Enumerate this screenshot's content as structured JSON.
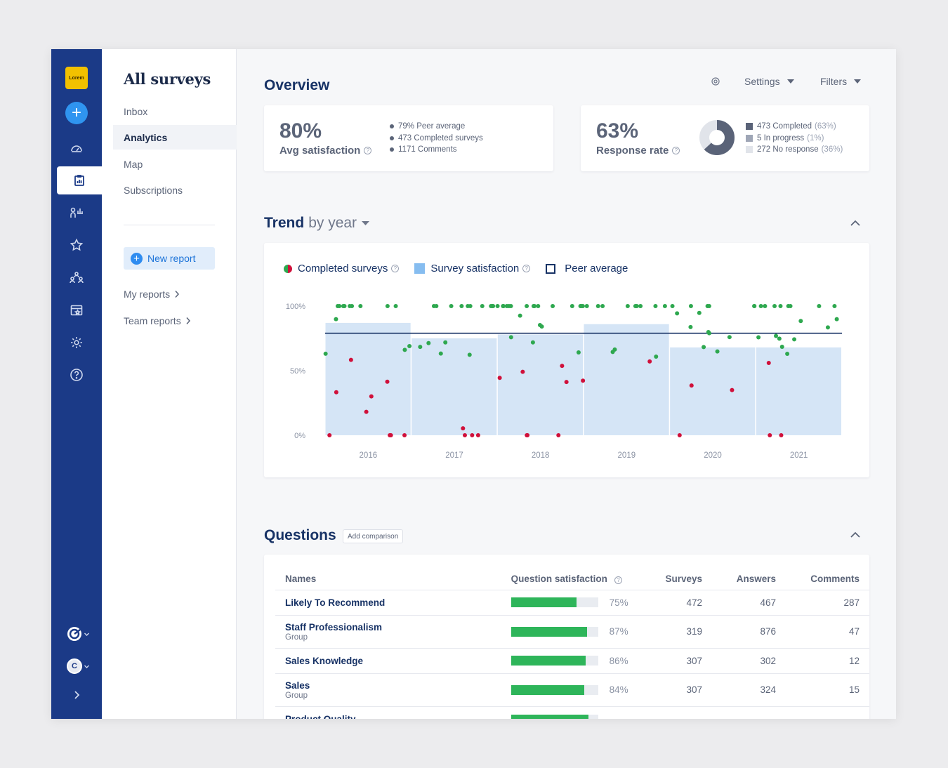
{
  "sidebar": {
    "logo_text": "Lorem",
    "avatar_initial": "C"
  },
  "subnav": {
    "title": "All surveys",
    "items": [
      "Inbox",
      "Analytics",
      "Map",
      "Subscriptions"
    ],
    "new_report": "New report",
    "my_reports": "My reports",
    "team_reports": "Team reports"
  },
  "overview": {
    "title": "Overview",
    "settings_label": "Settings",
    "filters_label": "Filters",
    "satisfaction": {
      "value": "80%",
      "label": "Avg satisfaction",
      "stats": [
        "79% Peer average",
        "473 Completed surveys",
        "1171 Comments"
      ]
    },
    "response": {
      "value": "63%",
      "label": "Response rate",
      "breakdown": [
        {
          "text": "473 Completed",
          "pct": "(63%)",
          "color": "#5a6378"
        },
        {
          "text": "5 In progress",
          "pct": "(1%)",
          "color": "#9fa6b6"
        },
        {
          "text": "272 No response",
          "pct": "(36%)",
          "color": "#e1e4ea"
        }
      ]
    }
  },
  "trend": {
    "title_bold": "Trend",
    "title_rest": "by year",
    "legend": {
      "completed": "Completed surveys",
      "satisfaction": "Survey satisfaction",
      "peer": "Peer average"
    }
  },
  "chart_data": {
    "type": "bar",
    "title": "Trend by year",
    "categories": [
      "2016",
      "2017",
      "2018",
      "2019",
      "2020",
      "2021"
    ],
    "series": [
      {
        "name": "Survey satisfaction",
        "values": [
          87,
          75,
          78,
          86,
          68,
          68
        ]
      },
      {
        "name": "Peer average",
        "values": [
          79,
          79,
          79,
          79,
          79,
          79
        ]
      }
    ],
    "yticks": [
      "100%",
      "50%",
      "0%"
    ],
    "ylim": [
      0,
      100
    ],
    "colors": {
      "bar": "#d5e5f6",
      "peer": "#173265",
      "positive": "#2ea84f",
      "negative": "#d0103a"
    }
  },
  "questions": {
    "title": "Questions",
    "add_comparison": "Add comparison",
    "columns": [
      "Names",
      "Question satisfaction",
      "Surveys",
      "Answers",
      "Comments"
    ],
    "rows": [
      {
        "name": "Likely To Recommend",
        "sub": "",
        "pct": 75,
        "pct_label": "75%",
        "surveys": "472",
        "answers": "467",
        "comments": "287"
      },
      {
        "name": "Staff Professionalism",
        "sub": "Group",
        "pct": 87,
        "pct_label": "87%",
        "surveys": "319",
        "answers": "876",
        "comments": "47"
      },
      {
        "name": "Sales Knowledge",
        "sub": "",
        "pct": 86,
        "pct_label": "86%",
        "surveys": "307",
        "answers": "302",
        "comments": "12"
      },
      {
        "name": "Sales",
        "sub": "Group",
        "pct": 84,
        "pct_label": "84%",
        "surveys": "307",
        "answers": "324",
        "comments": "15"
      },
      {
        "name": "Product Quality",
        "sub": "",
        "pct": 89,
        "pct_label": "",
        "surveys": "",
        "answers": "",
        "comments": ""
      }
    ]
  }
}
